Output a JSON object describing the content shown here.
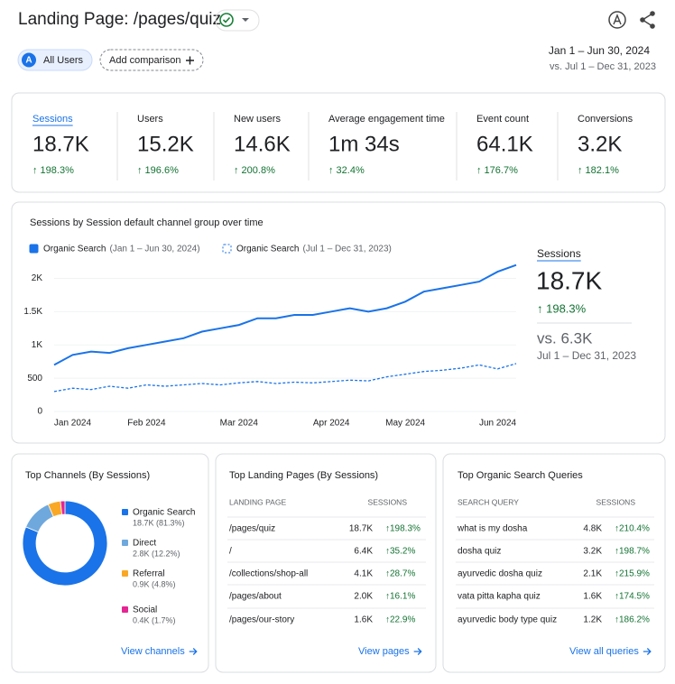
{
  "header": {
    "title": "Landing Page: /pages/quiz",
    "segment_badge": "A",
    "segment": "All Users",
    "add_comparison": "Add comparison",
    "date_range": "Jan 1 – Jun 30, 2024",
    "compare_range": "vs. Jul 1 – Dec 31, 2023"
  },
  "metrics": [
    {
      "label": "Sessions",
      "value": "18.7K",
      "change": "↑ 198.3%"
    },
    {
      "label": "Users",
      "value": "15.2K",
      "change": "↑ 196.6%"
    },
    {
      "label": "New users",
      "value": "14.6K",
      "change": "↑ 200.8%"
    },
    {
      "label": "Average engagement time",
      "value": "1m 34s",
      "change": "↑ 32.4%"
    },
    {
      "label": "Event count",
      "value": "64.1K",
      "change": "↑ 176.7%"
    },
    {
      "label": "Conversions",
      "value": "3.2K",
      "change": "↑ 182.1%"
    }
  ],
  "chart_data": [
    {
      "type": "line",
      "title": "Sessions by Session default channel group over time",
      "categories": [
        null,
        "Jan 2024",
        null,
        null,
        null,
        "Feb 2024",
        null,
        null,
        null,
        null,
        "Mar 2024",
        null,
        null,
        null,
        null,
        "Apr 2024",
        null,
        null,
        null,
        "May 2024",
        null,
        null,
        null,
        null,
        "Jun 2024",
        null
      ],
      "series": [
        {
          "name": "Organic Search",
          "period": "(Jan 1 – Jun 30, 2024)",
          "color": "#1a73e8",
          "dashed": false,
          "values": [
            700,
            850,
            900,
            880,
            950,
            1000,
            1050,
            1100,
            1200,
            1250,
            1300,
            1400,
            1400,
            1450,
            1450,
            1500,
            1550,
            1500,
            1550,
            1650,
            1800,
            1850,
            1900,
            1950,
            2100,
            2200
          ]
        },
        {
          "name": "Organic Search",
          "period": "(Jul 1 – Dec 31, 2023)",
          "color": "#1a73e8",
          "dashed": true,
          "values": [
            300,
            350,
            330,
            380,
            350,
            400,
            380,
            400,
            420,
            400,
            430,
            450,
            420,
            440,
            430,
            450,
            470,
            460,
            520,
            560,
            600,
            620,
            650,
            700,
            640,
            720
          ]
        }
      ],
      "ylim": [
        0,
        2250
      ],
      "yticks": [
        0,
        500,
        {
          "value": 1000,
          "label": "1K"
        },
        {
          "value": 1500,
          "label": "1.5K"
        },
        {
          "value": 2000,
          "label": "2K"
        }
      ],
      "grid": true,
      "summary": {
        "label": "Sessions",
        "value": "18.7K",
        "change": "↑ 198.3%",
        "compare_value": "vs. 6.3K",
        "compare_range": "Jul 1 – Dec 31, 2023"
      }
    },
    {
      "type": "pie",
      "title": "Top Channels (By Sessions)",
      "categories": [
        "Organic Search",
        "Direct",
        "Referral",
        "Social"
      ],
      "values": [
        81.3,
        12.2,
        4.8,
        1.7
      ],
      "value_labels": [
        "18.7K (81.3%)",
        "2.8K (12.2%)",
        "0.9K (4.8%)",
        "0.4K (1.7%)"
      ],
      "colors": [
        "#1a73e8",
        "#6fa8dc",
        "#f9a825",
        "#e52592"
      ],
      "donut": true,
      "link": "View channels"
    }
  ],
  "tables": [
    {
      "title": "Top Landing Pages (By Sessions)",
      "columns": [
        "LANDING PAGE",
        "SESSIONS"
      ],
      "rows": [
        [
          "/pages/quiz",
          "18.7K",
          "↑198.3%"
        ],
        [
          "/",
          "6.4K",
          "↑35.2%"
        ],
        [
          "/collections/shop-all",
          "4.1K",
          "↑28.7%"
        ],
        [
          "/pages/about",
          "2.0K",
          "↑16.1%"
        ],
        [
          "/pages/our-story",
          "1.6K",
          "↑22.9%"
        ]
      ],
      "link": "View pages"
    },
    {
      "title": "Top Organic Search Queries",
      "columns": [
        "SEARCH QUERY",
        "SESSIONS"
      ],
      "rows": [
        [
          "what is my dosha",
          "4.8K",
          "↑210.4%"
        ],
        [
          "dosha quiz",
          "3.2K",
          "↑198.7%"
        ],
        [
          "ayurvedic dosha quiz",
          "2.1K",
          "↑215.9%"
        ],
        [
          "vata pitta kapha quiz",
          "1.6K",
          "↑174.5%"
        ],
        [
          "ayurvedic body type quiz",
          "1.2K",
          "↑186.2%"
        ]
      ],
      "link": "View all queries"
    }
  ]
}
